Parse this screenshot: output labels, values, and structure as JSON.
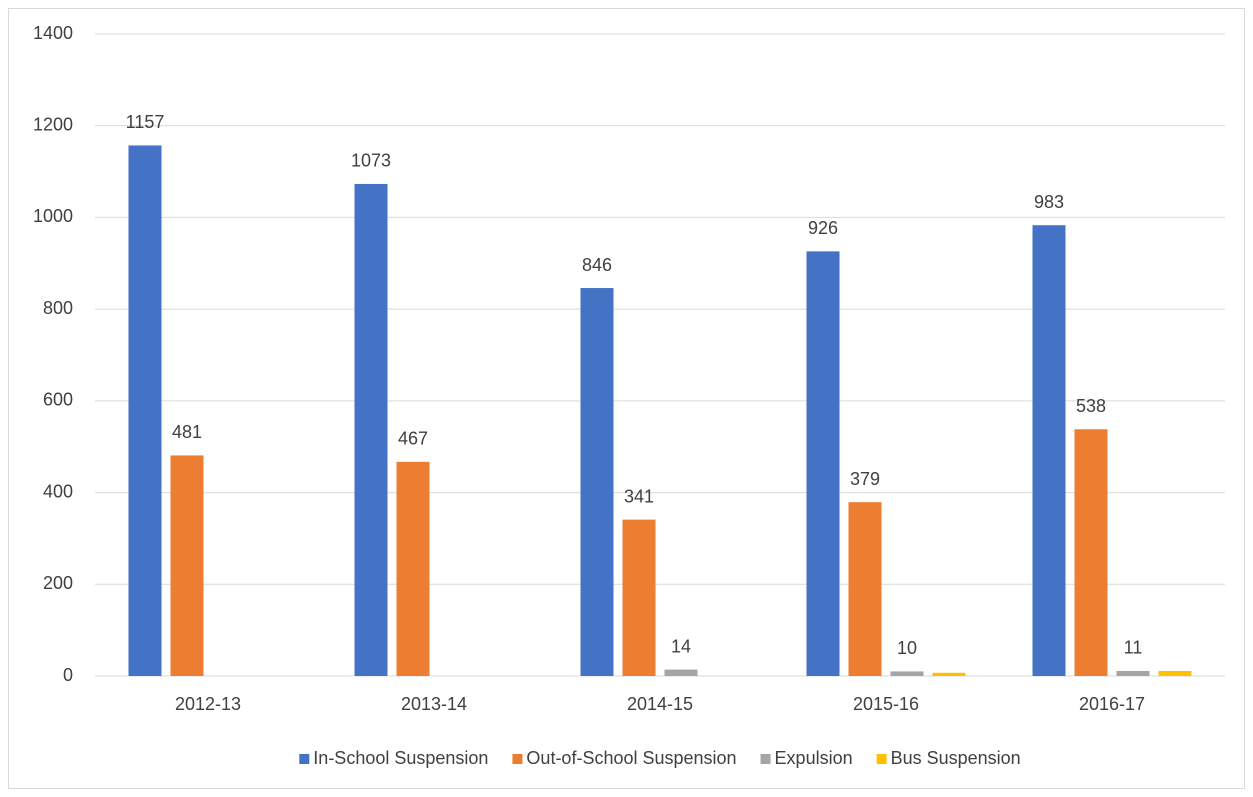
{
  "chart_data": {
    "type": "bar",
    "categories": [
      "2012-13",
      "2013-14",
      "2014-15",
      "2015-16",
      "2016-17"
    ],
    "series": [
      {
        "name": "In-School Suspension",
        "color": "#4472c4",
        "values": [
          1157,
          1073,
          846,
          926,
          983
        ],
        "show_labels": true
      },
      {
        "name": "Out-of-School Suspension",
        "color": "#ed7d31",
        "values": [
          481,
          467,
          341,
          379,
          538
        ],
        "show_labels": true
      },
      {
        "name": "Expulsion",
        "color": "#a5a5a5",
        "values": [
          null,
          null,
          14,
          10,
          11
        ],
        "show_labels": true
      },
      {
        "name": "Bus Suspension",
        "color": "#ffc000",
        "values": [
          null,
          null,
          null,
          7,
          11
        ],
        "show_labels": false
      }
    ],
    "ylim": [
      0,
      1400
    ],
    "yticks": [
      0,
      200,
      400,
      600,
      800,
      1000,
      1200,
      1400
    ],
    "grid": true,
    "legend": "bottom"
  }
}
